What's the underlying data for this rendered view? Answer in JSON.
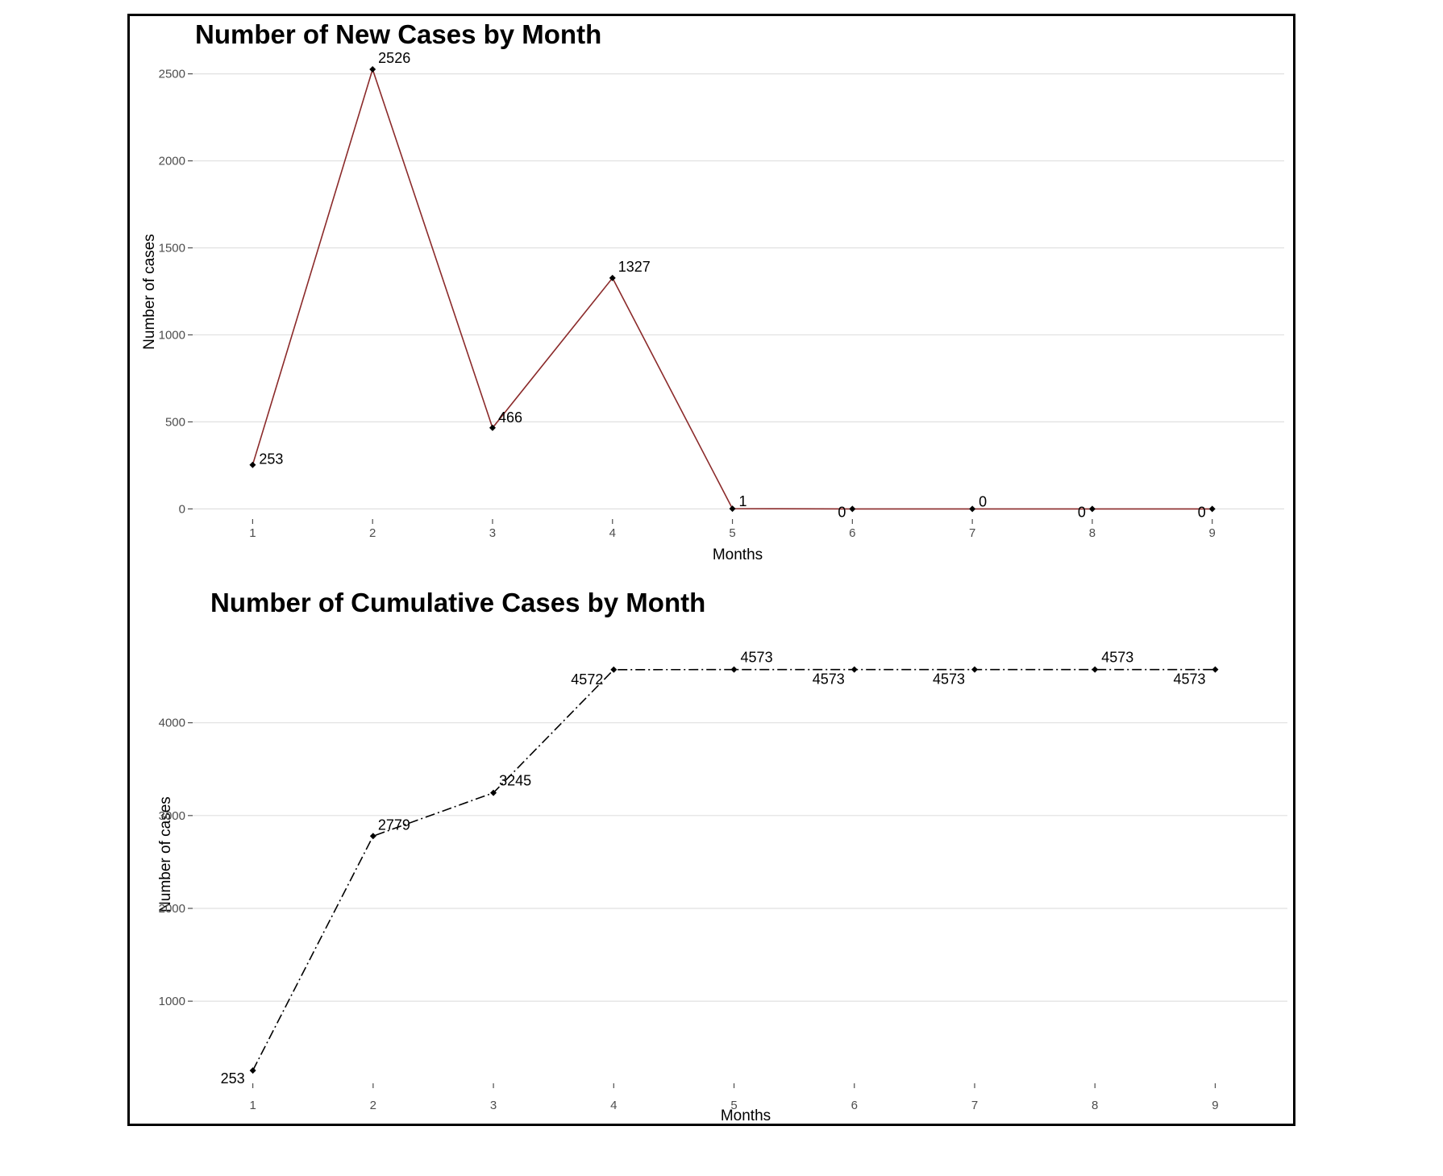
{
  "chart_data": [
    {
      "type": "line",
      "title": "Number of New Cases by Month",
      "xlabel": "Months",
      "ylabel": "Number of cases",
      "x": [
        1,
        2,
        3,
        4,
        5,
        6,
        7,
        8,
        9
      ],
      "y": [
        253,
        2526,
        466,
        1327,
        1,
        0,
        0,
        0,
        0
      ],
      "data_labels": [
        "253",
        "2526",
        "466",
        "1327",
        "1",
        "0",
        "0",
        "0",
        "0"
      ],
      "xlim": [
        0.5,
        9.6
      ],
      "ylim": [
        -40,
        2600
      ],
      "yticks": [
        0,
        500,
        1000,
        1500,
        2000,
        2500
      ],
      "grid": true,
      "line_color": "#8b2a2a",
      "line_style": "solid",
      "marker": "diamond"
    },
    {
      "type": "line",
      "title": "Number of Cumulative Cases by Month",
      "xlabel": "Months",
      "ylabel": "Number of cases",
      "x": [
        1,
        2,
        3,
        4,
        5,
        6,
        7,
        8,
        9
      ],
      "y": [
        253,
        2779,
        3245,
        4572,
        4573,
        4573,
        4573,
        4573,
        4573
      ],
      "data_labels": [
        "253",
        "2779",
        "3245",
        "4572",
        "4573",
        "4573",
        "4573",
        "4573",
        "4573"
      ],
      "xlim": [
        0.5,
        9.6
      ],
      "ylim": [
        150,
        5100
      ],
      "yticks": [
        1000,
        2000,
        3000,
        4000
      ],
      "grid": true,
      "line_color": "#000000",
      "line_style": "dashdot",
      "marker": "diamond"
    }
  ]
}
